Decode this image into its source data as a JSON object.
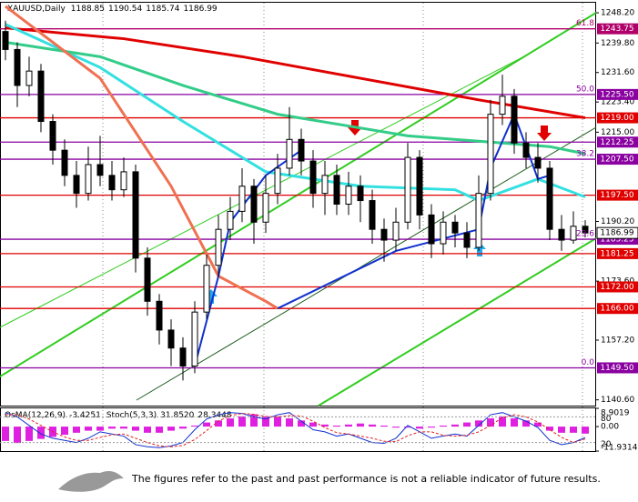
{
  "chart_data": {
    "type": "candlestick",
    "symbol": "XAUUSD,Daily",
    "ylim": [
      1139,
      1251
    ],
    "grid": false,
    "yticks": [
      {
        "value": 1248.2,
        "label": "1248.20"
      },
      {
        "value": 1239.8,
        "label": "1239.80"
      },
      {
        "value": 1231.6,
        "label": "1231.60"
      },
      {
        "value": 1223.4,
        "label": "1223.40"
      },
      {
        "value": 1215,
        "label": "1215.00"
      },
      {
        "value": 1190.2,
        "label": "1190.20"
      },
      {
        "value": 1173.6,
        "label": "1173.60"
      },
      {
        "value": 1157.2,
        "label": "1157.20"
      },
      {
        "value": 1140.6,
        "label": "1140.60"
      }
    ],
    "open": [
      1243,
      1238,
      1228,
      1232,
      1218,
      1210,
      1203,
      1198,
      1206,
      1203,
      1199,
      1204,
      1180,
      1168,
      1160,
      1155,
      1150,
      1165,
      1178,
      1188,
      1193,
      1200,
      1190,
      1198,
      1205,
      1213,
      1207,
      1198,
      1203,
      1195,
      1200,
      1196,
      1188,
      1185,
      1190,
      1208,
      1192,
      1184,
      1190,
      1187,
      1183,
      1198,
      1220,
      1225,
      1212,
      1208,
      1205,
      1188,
      1185,
      1188.85
    ],
    "high": [
      1246,
      1240,
      1236,
      1234,
      1220,
      1213,
      1207,
      1211,
      1214,
      1207,
      1208,
      1206,
      1183,
      1170,
      1163,
      1158,
      1168,
      1181,
      1192,
      1197,
      1205,
      1202,
      1203,
      1209,
      1222,
      1216,
      1210,
      1207,
      1206,
      1204,
      1203,
      1199,
      1191,
      1194,
      1212,
      1210,
      1195,
      1193,
      1192,
      1190,
      1203,
      1224,
      1231,
      1227,
      1215,
      1212,
      1207,
      1192,
      1193,
      1190.54
    ],
    "low": [
      1235,
      1222,
      1225,
      1215,
      1206,
      1200,
      1194,
      1196,
      1200,
      1196,
      1197,
      1176,
      1164,
      1156,
      1150,
      1146,
      1148,
      1163,
      1175,
      1185,
      1190,
      1184,
      1187,
      1195,
      1203,
      1203,
      1194,
      1192,
      1192,
      1192,
      1190,
      1184,
      1179,
      1182,
      1188,
      1188,
      1180,
      1181,
      1183,
      1180,
      1182,
      1196,
      1217,
      1209,
      1205,
      1201,
      1185,
      1182,
      1184,
      1185.74
    ],
    "close": [
      1238,
      1228,
      1232,
      1218,
      1210,
      1203,
      1198,
      1206,
      1203,
      1199,
      1204,
      1180,
      1168,
      1160,
      1155,
      1150,
      1165,
      1178,
      1188,
      1193,
      1200,
      1190,
      1198,
      1205,
      1213,
      1207,
      1198,
      1203,
      1195,
      1200,
      1196,
      1188,
      1185,
      1190,
      1208,
      1192,
      1184,
      1190,
      1187,
      1183,
      1198,
      1220,
      1225,
      1212,
      1208,
      1205,
      1188,
      1185,
      1188.85,
      1186.99
    ],
    "moving_averages": [
      {
        "color": "#e00000",
        "width": 3,
        "x": [
          0,
          10,
          20,
          30,
          40,
          49
        ],
        "values": [
          1244,
          1241,
          1236,
          1230,
          1224,
          1219
        ]
      },
      {
        "color": "#33e0e0",
        "width": 3,
        "x": [
          0,
          8,
          15,
          22,
          30,
          38,
          40,
          45,
          49
        ],
        "values": [
          1245,
          1233,
          1218,
          1204,
          1200,
          1199,
          1196,
          1202,
          1197
        ]
      },
      {
        "color": "#33cc88",
        "width": 3,
        "x": [
          0,
          8,
          15,
          23,
          34,
          46,
          49
        ],
        "values": [
          1240,
          1236,
          1228,
          1220,
          1214,
          1211,
          1209
        ]
      },
      {
        "color": "#f07050",
        "width": 3,
        "x": [
          0,
          8,
          14,
          18,
          22,
          23
        ],
        "values": [
          1250,
          1230,
          1200,
          1175,
          1168,
          1166
        ]
      },
      {
        "color": "#1030d0",
        "width": 2,
        "x": [
          16,
          18,
          19,
          22,
          25
        ],
        "values": [
          1150,
          1175,
          1190,
          1203,
          1210
        ]
      },
      {
        "color": "#1030d0",
        "width": 2,
        "x": [
          23,
          33,
          40,
          41,
          43,
          45,
          46
        ],
        "values": [
          1166,
          1182,
          1188,
          1205,
          1220,
          1202,
          1203
        ]
      }
    ],
    "levels": [
      {
        "value": 1243.75,
        "label": "1243.75",
        "color": "#b0006a",
        "fib": "61.8"
      },
      {
        "value": 1225.5,
        "label": "1225.50",
        "color": "#8a00a0",
        "fib": "50.0"
      },
      {
        "value": 1219,
        "label": "1219.00",
        "color": "#e00000"
      },
      {
        "value": 1212.25,
        "label": "1212.25",
        "color": "#8a00a0"
      },
      {
        "value": 1207.5,
        "label": "1207.50",
        "color": "#8a00a0",
        "fib": "38.2"
      },
      {
        "value": 1197.5,
        "label": "1197.50",
        "color": "#e00000"
      },
      {
        "value": 1185.25,
        "label": "1185.25",
        "color": "#8a00a0",
        "fib": "23.6"
      },
      {
        "value": 1181.25,
        "label": "1181.25",
        "color": "#e00000"
      },
      {
        "value": 1172,
        "label": "1172.00",
        "color": "#e00000"
      },
      {
        "value": 1166,
        "label": "1166.00",
        "color": "#e00000"
      },
      {
        "value": 1149.5,
        "label": "1149.50",
        "color": "#8a00a0",
        "fib": "0.0"
      }
    ],
    "oscillator": {
      "osma_name": "OsMA(12,26,9)",
      "stoch_name": "Stoch(5,3,3)",
      "ylim": [
        -11.9314,
        8.9019
      ],
      "yticks": [
        {
          "value": 8.9019,
          "label": "8.9019"
        },
        {
          "value": 0,
          "label": "0.00"
        },
        {
          "value": -11.9314,
          "label": "-11.9314"
        }
      ],
      "y2lim": [
        0,
        100
      ],
      "y2ticks": [
        80,
        20
      ],
      "osma": {
        "color": "#e020e0",
        "values": [
          -7,
          -8,
          -7,
          -6,
          -5,
          -4,
          -3,
          -2,
          -2,
          -1,
          -1,
          -2,
          -3,
          -3,
          -2,
          -1,
          0.5,
          2,
          3,
          4,
          5,
          6,
          5,
          5,
          4,
          3,
          2,
          1,
          0.5,
          1,
          1.5,
          1,
          0.5,
          -0.5,
          -0.5,
          -1,
          -0.5,
          0.5,
          1,
          2,
          3,
          4,
          5,
          4,
          3,
          2,
          -2,
          -3,
          -3,
          -3.4251
        ]
      },
      "stoch": {
        "color": "#1030d0",
        "values": [
          90,
          80,
          60,
          40,
          30,
          25,
          20,
          30,
          45,
          40,
          35,
          15,
          10,
          8,
          12,
          20,
          50,
          75,
          85,
          90,
          88,
          80,
          75,
          85,
          90,
          70,
          50,
          45,
          35,
          40,
          30,
          20,
          18,
          30,
          60,
          45,
          30,
          35,
          40,
          35,
          60,
          85,
          90,
          80,
          70,
          55,
          25,
          15,
          20,
          31.852
        ],
        "value_labels": [
          null,
          null,
          null,
          null,
          null,
          null,
          null,
          null,
          null,
          null,
          null,
          null,
          null,
          null,
          null,
          null,
          null,
          null,
          null,
          null,
          null,
          null,
          null,
          null,
          null,
          null,
          null,
          null,
          null,
          null,
          null,
          null,
          null,
          null,
          null,
          null,
          null,
          null,
          null,
          null,
          null,
          null,
          null,
          null,
          null,
          null,
          null,
          null,
          null,
          "31.8520"
        ]
      },
      "signal": {
        "color": "#e02020",
        "values": [
          85,
          85,
          75,
          60,
          45,
          33,
          25,
          25,
          32,
          38,
          40,
          30,
          20,
          12,
          10,
          13,
          27,
          48,
          70,
          83,
          88,
          86,
          81,
          80,
          83,
          82,
          70,
          55,
          43,
          40,
          35,
          30,
          23,
          22,
          36,
          45,
          45,
          37,
          35,
          37,
          45,
          60,
          78,
          85,
          80,
          68,
          50,
          32,
          20,
          28.3448
        ]
      }
    }
  },
  "footer": {
    "disclaimer": "The figures refer to the past and past performance is not a reliable indicator of future results."
  }
}
